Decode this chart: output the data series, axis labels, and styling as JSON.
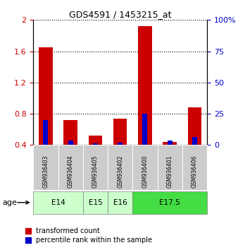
{
  "title": "GDS4591 / 1453215_at",
  "samples": [
    "GSM936403",
    "GSM936404",
    "GSM936405",
    "GSM936402",
    "GSM936400",
    "GSM936401",
    "GSM936406"
  ],
  "transformed_count": [
    1.65,
    0.72,
    0.52,
    0.74,
    1.92,
    0.44,
    0.88
  ],
  "percentile_rank": [
    0.72,
    0.46,
    0.42,
    0.43,
    0.8,
    0.46,
    0.5
  ],
  "bar_bottom": 0.4,
  "ylim_left": [
    0.4,
    2.0
  ],
  "ylim_right": [
    0,
    100
  ],
  "yticks_left": [
    0.4,
    0.8,
    1.2,
    1.6,
    2.0
  ],
  "ytick_labels_left": [
    "0.4",
    "0.8",
    "1.2",
    "1.6",
    "2"
  ],
  "yticks_right": [
    0,
    25,
    50,
    75,
    100
  ],
  "ytick_labels_right": [
    "0",
    "25",
    "50",
    "75",
    "100%"
  ],
  "red_color": "#cc0000",
  "blue_color": "#0000cc",
  "bar_width": 0.55,
  "blue_bar_width": 0.2,
  "groups": [
    {
      "label": "E14",
      "indices": [
        0,
        1
      ],
      "color": "#ccffcc"
    },
    {
      "label": "E15",
      "indices": [
        2
      ],
      "color": "#ccffcc"
    },
    {
      "label": "E16",
      "indices": [
        3
      ],
      "color": "#ccffcc"
    },
    {
      "label": "E17.5",
      "indices": [
        4,
        5,
        6
      ],
      "color": "#44dd44"
    }
  ],
  "age_label": "age",
  "legend_red": "transformed count",
  "legend_blue": "percentile rank within the sample",
  "bg_color": "#cccccc",
  "left_tick_color": "#cc0000",
  "right_tick_color": "#0000cc"
}
